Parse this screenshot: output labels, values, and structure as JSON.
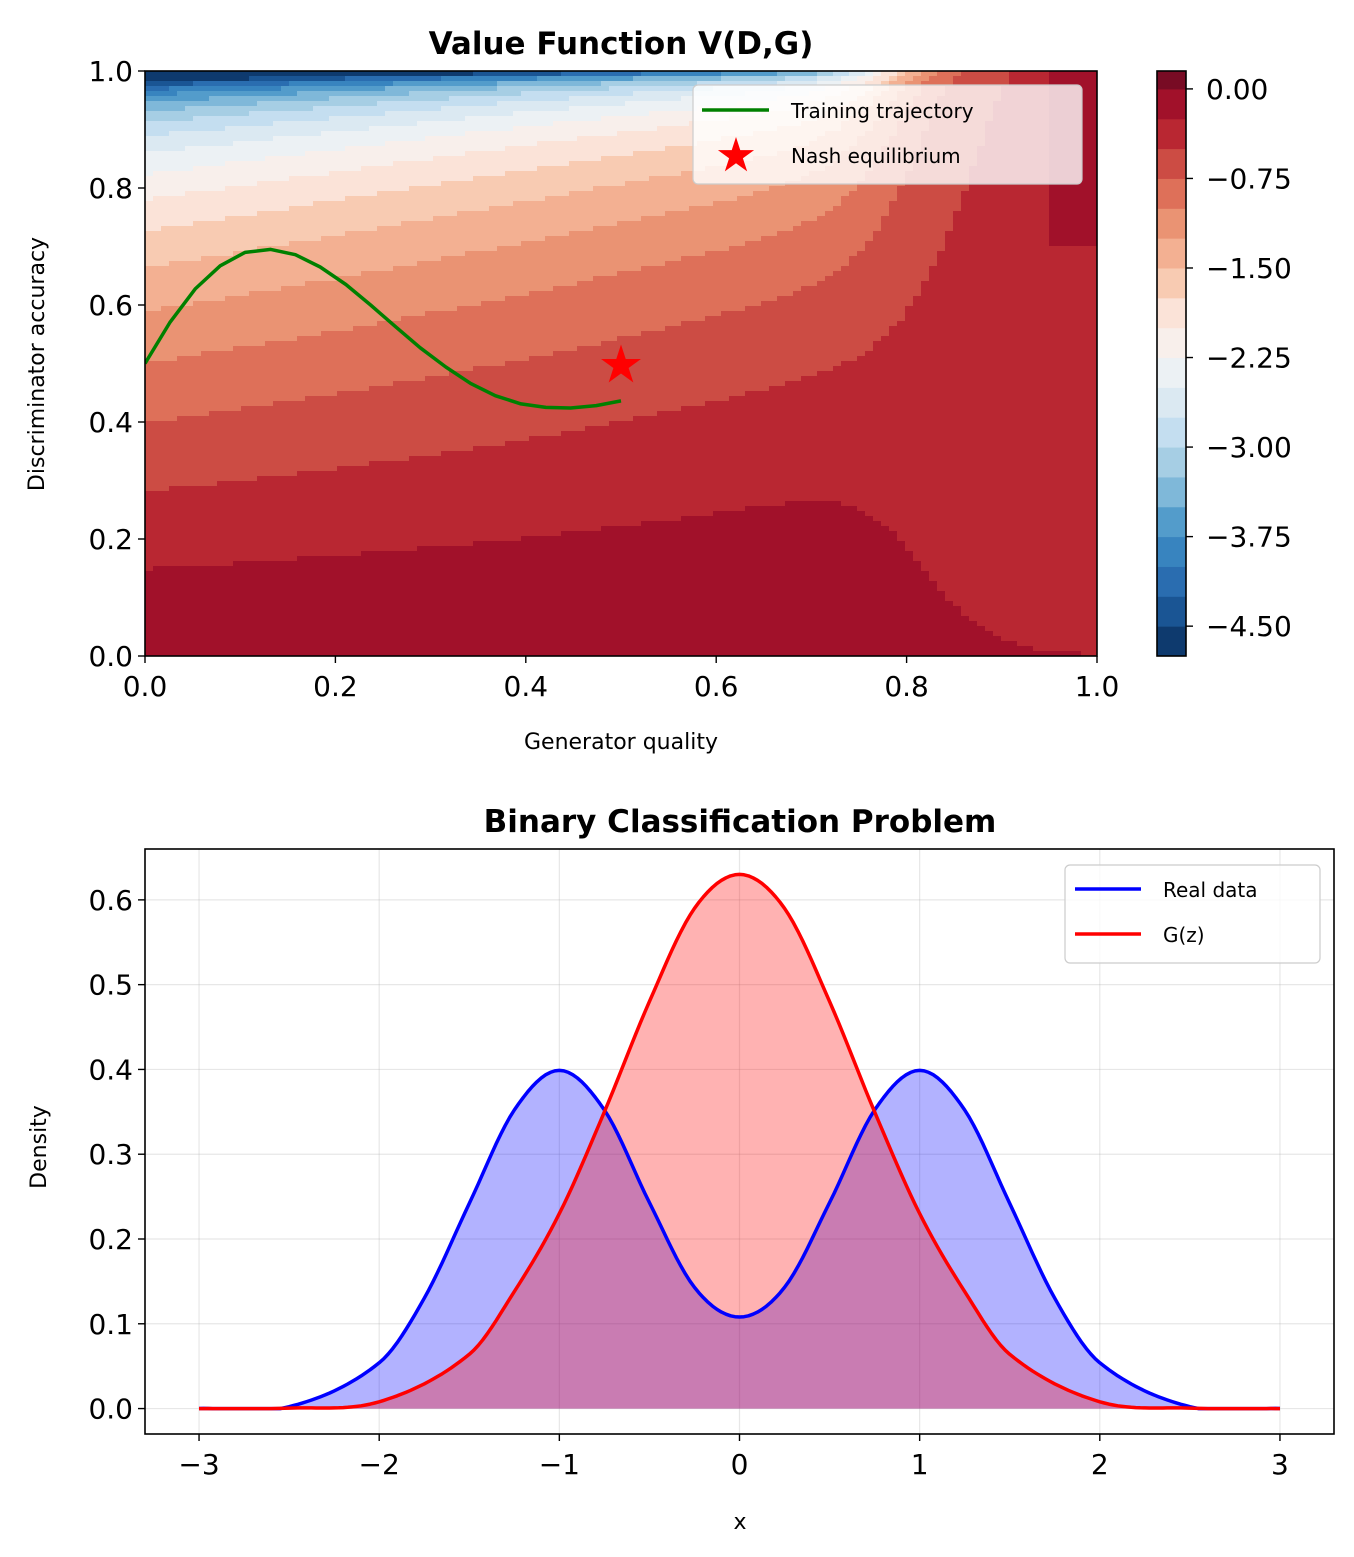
{
  "chart_data": [
    {
      "type": "heatmap",
      "subtype": "filled-contour",
      "title": "Value Function V(D,G)",
      "xlabel": "Generator quality",
      "ylabel": "Discriminator accuracy",
      "xlim": [
        0.0,
        1.0
      ],
      "ylim": [
        0.0,
        1.0
      ],
      "xticks": [
        "0.0",
        "0.2",
        "0.4",
        "0.6",
        "0.8",
        "1.0"
      ],
      "yticks": [
        "0.0",
        "0.2",
        "0.4",
        "0.6",
        "0.8",
        "1.0"
      ],
      "colormap": "RdBu_r",
      "colorbar": {
        "ticks": [
          "0.00",
          "−0.75",
          "−1.50",
          "−2.25",
          "−3.00",
          "−3.75",
          "−4.50"
        ],
        "tick_values": [
          0.0,
          -0.75,
          -1.5,
          -2.25,
          -3.0,
          -3.75,
          -4.5
        ],
        "range": [
          -4.75,
          0.15
        ],
        "levels": [
          -4.75,
          -4.5,
          -4.25,
          -4.0,
          -3.75,
          -3.5,
          -3.25,
          -3.0,
          -2.75,
          -2.5,
          -2.25,
          -2.0,
          -1.75,
          -1.5,
          -1.25,
          -1.0,
          -0.75,
          -0.5,
          -0.25,
          0.0,
          0.15
        ],
        "colors": [
          "#0e3a6e",
          "#1a5594",
          "#2a6db0",
          "#3884bf",
          "#539ccb",
          "#7fb8d9",
          "#a6cee4",
          "#c4def0",
          "#dbe9f2",
          "#ecf1f4",
          "#f8efeb",
          "#fbe3d8",
          "#f8cbb2",
          "#f3b092",
          "#ea9373",
          "#de7059",
          "#cc4c44",
          "#b92732",
          "#a1112a",
          "#780b24"
        ]
      },
      "series": [
        {
          "name": "Training trajectory",
          "type": "line",
          "color": "#008000",
          "x": [
            0.0,
            0.026,
            0.053,
            0.079,
            0.105,
            0.132,
            0.158,
            0.184,
            0.211,
            0.237,
            0.263,
            0.289,
            0.316,
            0.342,
            0.368,
            0.395,
            0.421,
            0.447,
            0.474,
            0.5
          ],
          "y": [
            0.5,
            0.57,
            0.628,
            0.667,
            0.69,
            0.695,
            0.686,
            0.665,
            0.635,
            0.6,
            0.563,
            0.527,
            0.494,
            0.466,
            0.445,
            0.431,
            0.425,
            0.424,
            0.428,
            0.436
          ]
        },
        {
          "name": "Nash equilibrium",
          "type": "scatter",
          "marker": "star",
          "color": "#ff0000",
          "x": [
            0.5
          ],
          "y": [
            0.5
          ]
        }
      ],
      "legend": {
        "placement": "upper-right",
        "entries": [
          "Training trajectory",
          "Nash equilibrium"
        ]
      }
    },
    {
      "type": "area",
      "title": "Binary Classification Problem",
      "xlabel": "x",
      "ylabel": "Density",
      "xlim": [
        -3.3,
        3.3
      ],
      "ylim": [
        -0.03,
        0.66
      ],
      "xticks": [
        "−3",
        "−2",
        "−1",
        "0",
        "1",
        "2",
        "3"
      ],
      "xtick_values": [
        -3,
        -2,
        -1,
        0,
        1,
        2,
        3
      ],
      "yticks": [
        "0.0",
        "0.1",
        "0.2",
        "0.3",
        "0.4",
        "0.5",
        "0.6"
      ],
      "ytick_values": [
        0.0,
        0.1,
        0.2,
        0.3,
        0.4,
        0.5,
        0.6
      ],
      "grid": true,
      "series": [
        {
          "name": "Real data",
          "color": "#0000ff",
          "fill_color": "#0000ff",
          "fill_alpha": 0.3,
          "x": [
            -3.0,
            -2.5,
            -2.0,
            -1.75,
            -1.5,
            -1.25,
            -1.0,
            -0.75,
            -0.5,
            -0.25,
            0.0,
            0.25,
            0.5,
            0.75,
            1.0,
            1.25,
            1.5,
            1.75,
            2.0,
            2.5,
            3.0
          ],
          "y": [
            0.0001,
            0.0022,
            0.054,
            0.13,
            0.242,
            0.3521,
            0.3989,
            0.3521,
            0.243,
            0.1429,
            0.108,
            0.1429,
            0.243,
            0.3521,
            0.3989,
            0.3521,
            0.242,
            0.13,
            0.054,
            0.0022,
            0.0001
          ]
        },
        {
          "name": "G(z)",
          "color": "#ff0000",
          "fill_color": "#ff0000",
          "fill_alpha": 0.3,
          "x": [
            -3.0,
            -2.5,
            -2.0,
            -1.5,
            -1.25,
            -1.0,
            -0.75,
            -0.5,
            -0.25,
            0.0,
            0.25,
            0.5,
            0.75,
            1.0,
            1.25,
            1.5,
            2.0,
            2.5,
            3.0
          ],
          "y": [
            0.0,
            0.0005,
            0.008,
            0.064,
            0.138,
            0.23,
            0.35,
            0.48,
            0.59,
            0.63,
            0.59,
            0.48,
            0.35,
            0.23,
            0.138,
            0.064,
            0.008,
            0.0005,
            0.0
          ]
        }
      ],
      "legend": {
        "placement": "upper-right",
        "entries": [
          "Real data",
          "G(z)"
        ]
      }
    }
  ]
}
